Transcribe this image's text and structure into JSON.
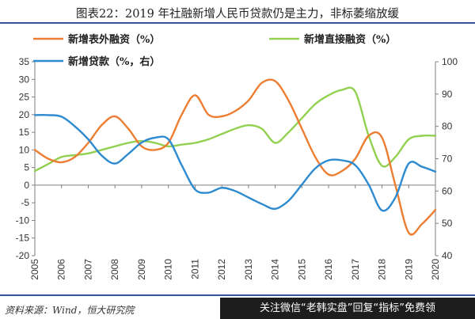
{
  "header": {
    "title": "图表22：2019 年社融新增人民币贷款仍是主力，非标萎缩放缓"
  },
  "footer": {
    "source": "资料来源：Wind，恒大研究院",
    "watermark": "关注微信“老韩实盘”回复“指标”免费领"
  },
  "chart_data": {
    "type": "line",
    "title": "",
    "xlabel": "",
    "ylabel": "",
    "x": [
      "2005",
      "2006",
      "2007",
      "2008",
      "2009",
      "2010",
      "2011",
      "2012",
      "2013",
      "2014",
      "2015",
      "2016",
      "2017",
      "2018",
      "2019",
      "2020"
    ],
    "ylim_left": [
      -20,
      35
    ],
    "yticks_left": [
      -20,
      -15,
      -10,
      -5,
      0,
      5,
      10,
      15,
      20,
      25,
      30,
      35
    ],
    "ylim_right": [
      40,
      100
    ],
    "yticks_right": [
      40,
      50,
      60,
      70,
      80,
      90,
      100
    ],
    "grid": false,
    "legend_position": "top",
    "series": [
      {
        "name": "新增表外融资（%）",
        "axis": "left",
        "color": "#ed7d31",
        "points": [
          [
            2005,
            10
          ],
          [
            2005.5,
            7.5
          ],
          [
            2006,
            6.5
          ],
          [
            2006.5,
            8
          ],
          [
            2007,
            12
          ],
          [
            2007.5,
            17
          ],
          [
            2008,
            19.5
          ],
          [
            2008.5,
            16
          ],
          [
            2009,
            11
          ],
          [
            2009.5,
            10
          ],
          [
            2010,
            12
          ],
          [
            2010.5,
            20
          ],
          [
            2011,
            25.5
          ],
          [
            2011.5,
            20
          ],
          [
            2012,
            19.5
          ],
          [
            2012.5,
            21
          ],
          [
            2013,
            24
          ],
          [
            2013.5,
            29
          ],
          [
            2014,
            29.5
          ],
          [
            2014.5,
            24
          ],
          [
            2015,
            16
          ],
          [
            2015.5,
            8
          ],
          [
            2016,
            3
          ],
          [
            2016.5,
            4
          ],
          [
            2017,
            7.5
          ],
          [
            2017.5,
            14
          ],
          [
            2018,
            13.5
          ],
          [
            2018.5,
            0
          ],
          [
            2019,
            -13.5
          ],
          [
            2019.5,
            -11
          ],
          [
            2020,
            -7
          ]
        ]
      },
      {
        "name": "新增直接融资（%）",
        "axis": "left",
        "color": "#92d050",
        "points": [
          [
            2005,
            4
          ],
          [
            2005.5,
            6
          ],
          [
            2006,
            8
          ],
          [
            2006.5,
            8.5
          ],
          [
            2007,
            9
          ],
          [
            2007.5,
            10
          ],
          [
            2008,
            11
          ],
          [
            2008.5,
            12
          ],
          [
            2009,
            12.5
          ],
          [
            2009.5,
            12
          ],
          [
            2010,
            11
          ],
          [
            2010.5,
            11.5
          ],
          [
            2011,
            12
          ],
          [
            2011.5,
            13
          ],
          [
            2012,
            14.5
          ],
          [
            2012.5,
            16
          ],
          [
            2013,
            17
          ],
          [
            2013.5,
            16
          ],
          [
            2014,
            12
          ],
          [
            2014.5,
            15
          ],
          [
            2015,
            19
          ],
          [
            2015.5,
            23
          ],
          [
            2016,
            25.5
          ],
          [
            2016.5,
            27
          ],
          [
            2017,
            26.5
          ],
          [
            2017.5,
            14
          ],
          [
            2018,
            5.5
          ],
          [
            2018.5,
            8
          ],
          [
            2019,
            13
          ],
          [
            2019.5,
            14
          ],
          [
            2020,
            14
          ]
        ]
      },
      {
        "name": "新增贷款（%，右）",
        "axis": "right",
        "color": "#2e8bd0",
        "points": [
          [
            2005,
            83.5
          ],
          [
            2005.5,
            83.5
          ],
          [
            2006,
            83
          ],
          [
            2006.5,
            80
          ],
          [
            2007,
            76
          ],
          [
            2007.5,
            71
          ],
          [
            2008,
            68.5
          ],
          [
            2008.5,
            71.5
          ],
          [
            2009,
            75
          ],
          [
            2009.5,
            76.5
          ],
          [
            2010,
            76
          ],
          [
            2010.5,
            68
          ],
          [
            2011,
            60.5
          ],
          [
            2011.5,
            59.5
          ],
          [
            2012,
            61
          ],
          [
            2012.5,
            60
          ],
          [
            2013,
            58
          ],
          [
            2013.5,
            56
          ],
          [
            2014,
            54.5
          ],
          [
            2014.5,
            57
          ],
          [
            2015,
            62
          ],
          [
            2015.5,
            67
          ],
          [
            2016,
            69.5
          ],
          [
            2016.5,
            69.5
          ],
          [
            2017,
            68
          ],
          [
            2017.5,
            62
          ],
          [
            2018,
            54
          ],
          [
            2018.5,
            58
          ],
          [
            2019,
            68.5
          ],
          [
            2019.5,
            67.5
          ],
          [
            2020,
            66
          ]
        ]
      }
    ]
  }
}
